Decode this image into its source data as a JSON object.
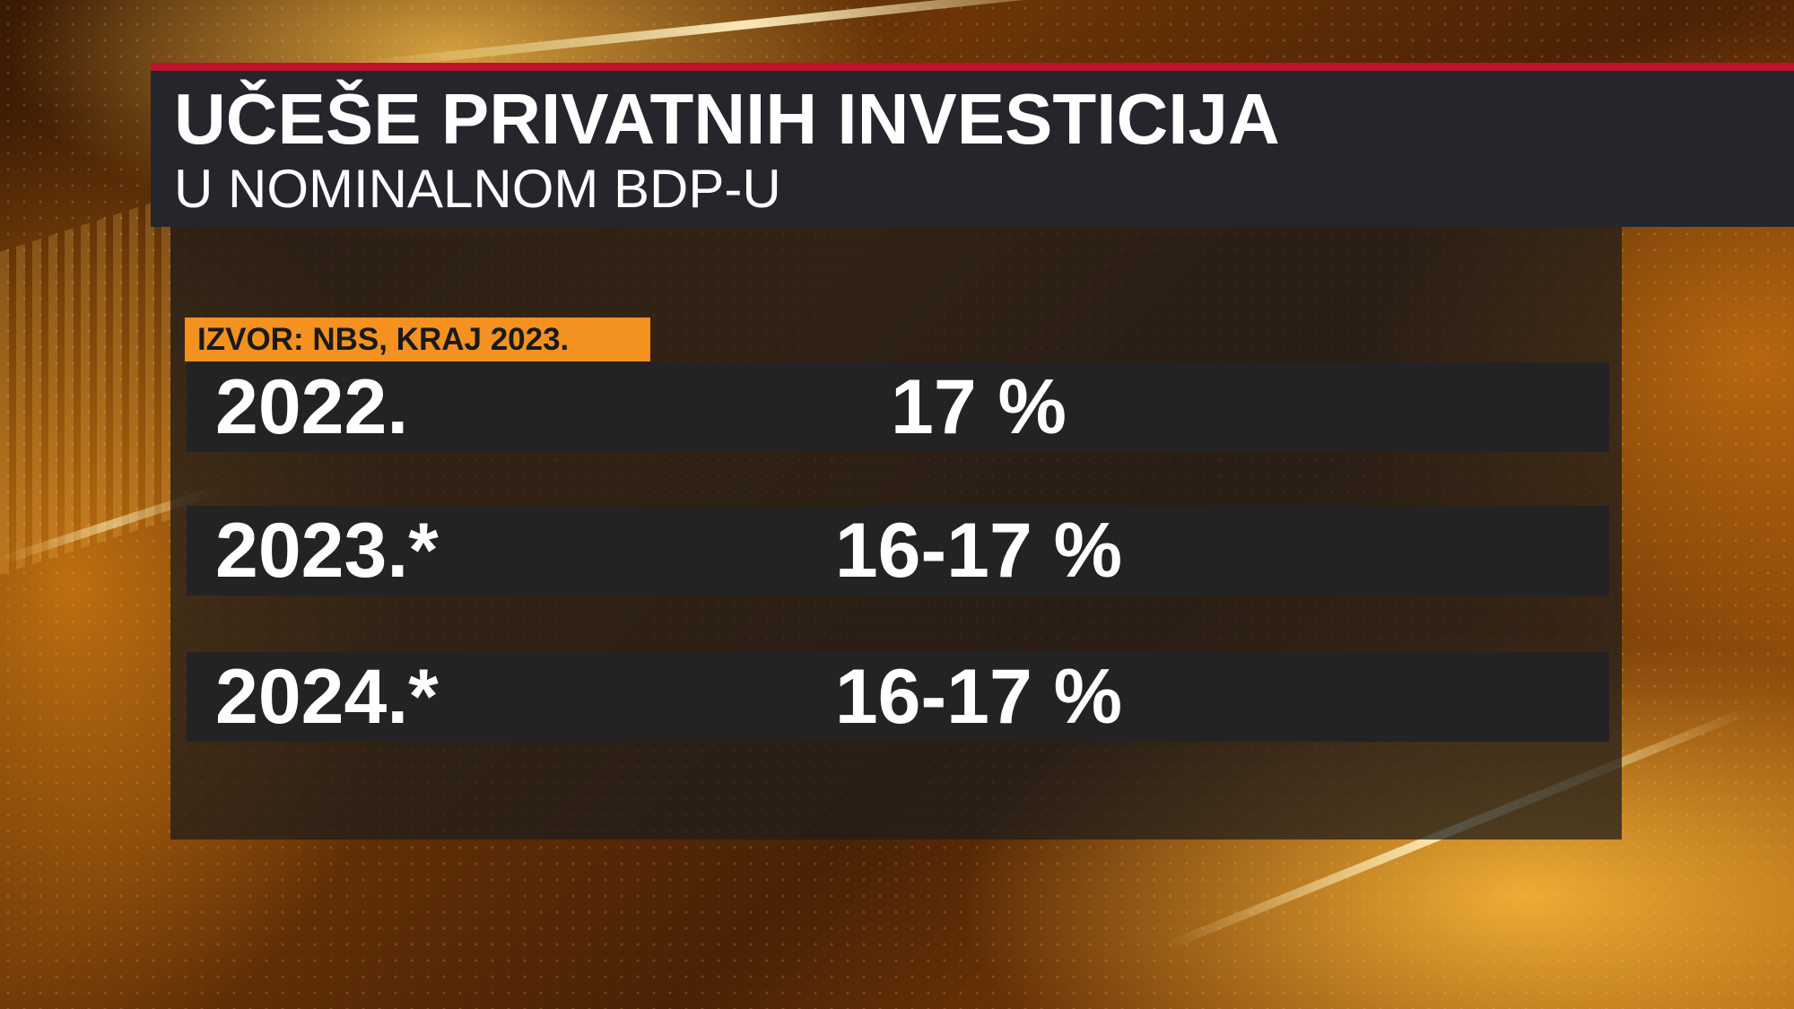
{
  "title": "UČEŠE PRIVATNIH INVESTICIJA",
  "subtitle": "U NOMINALNOM BDP-U",
  "source": "IZVOR: NBS, KRAJ 2023.",
  "rows": [
    {
      "year": "2022.",
      "value": "17 %"
    },
    {
      "year": "2023.*",
      "value": "16-17 %"
    },
    {
      "year": "2024.*",
      "value": "16-17 %"
    }
  ],
  "colors": {
    "accent_red": "#c0122b",
    "badge_orange": "#f39221",
    "panel_dark": "#25262b"
  }
}
